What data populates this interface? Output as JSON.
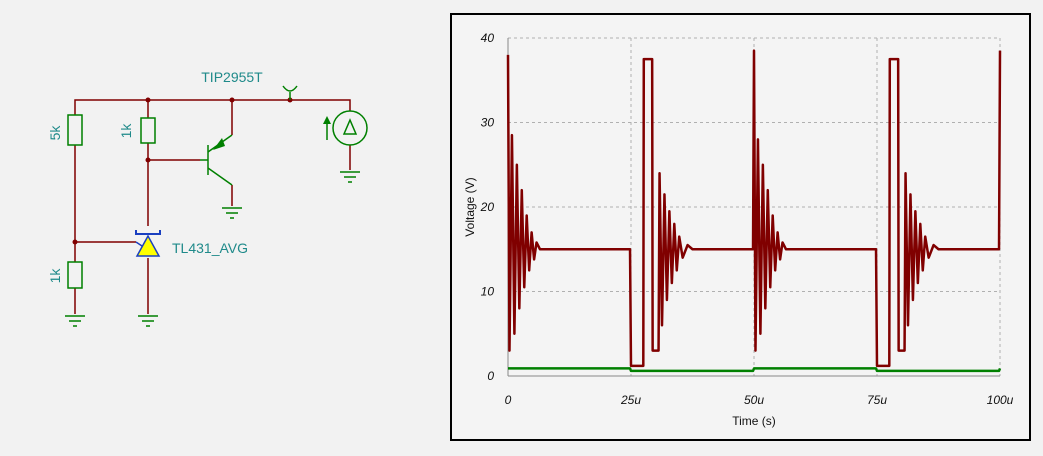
{
  "schematic": {
    "components": [
      {
        "label": "5k"
      },
      {
        "label": "1k"
      },
      {
        "label": "1k"
      },
      {
        "label": "TIP2955T"
      },
      {
        "label": "TL431_AVG"
      }
    ]
  },
  "chart_data": {
    "type": "line",
    "x_label": "Time (s)",
    "y_label": "Voltage (V)",
    "xlim": [
      0,
      0.0001
    ],
    "ylim": [
      0,
      40
    ],
    "xticks": [
      0,
      {
        "value": 2.5e-05,
        "label": "25u"
      },
      {
        "value": 5e-05,
        "label": "50u"
      },
      {
        "value": 7.5e-05,
        "label": "75u"
      },
      {
        "value": 0.0001,
        "label": "100u"
      }
    ],
    "yticks": [
      0,
      10,
      20,
      30,
      40
    ],
    "grid": true,
    "x": [
      0,
      3e-07,
      8e-07,
      1.3e-06,
      1.8e-06,
      2.3e-06,
      2.8e-06,
      3.3e-06,
      3.8e-06,
      4.3e-06,
      4.8e-06,
      5.3e-06,
      5.8e-06,
      6.5e-06,
      2.48e-05,
      2.5e-05,
      2.75e-05,
      2.76e-05,
      2.93e-05,
      2.94e-05,
      3.06e-05,
      3.08e-05,
      3.13e-05,
      3.18e-05,
      3.23e-05,
      3.28e-05,
      3.33e-05,
      3.38e-05,
      3.43e-05,
      3.48e-05,
      3.55e-05,
      3.65e-05,
      3.75e-05,
      4.98e-05,
      5e-05,
      5.03e-05,
      5.08e-05,
      5.13e-05,
      5.18e-05,
      5.23e-05,
      5.28e-05,
      5.33e-05,
      5.38e-05,
      5.43e-05,
      5.48e-05,
      5.53e-05,
      5.58e-05,
      5.65e-05,
      7.48e-05,
      7.5e-05,
      7.75e-05,
      7.76e-05,
      7.93e-05,
      7.94e-05,
      8.06e-05,
      8.08e-05,
      8.13e-05,
      8.18e-05,
      8.23e-05,
      8.28e-05,
      8.33e-05,
      8.38e-05,
      8.43e-05,
      8.48e-05,
      8.55e-05,
      8.65e-05,
      8.75e-05,
      9.98e-05,
      0.0001
    ],
    "series": [
      {
        "color": "#800000",
        "values": [
          38,
          3,
          28.5,
          5,
          25,
          8,
          22,
          10.5,
          19,
          12.5,
          17,
          13.8,
          15.8,
          15,
          15,
          1.2,
          1.2,
          37.5,
          37.5,
          3,
          3,
          24,
          6,
          21.5,
          9,
          19.5,
          11,
          18,
          12.5,
          16.5,
          14,
          15.5,
          15,
          15,
          38.5,
          3,
          28,
          5,
          25,
          8,
          22,
          10.5,
          19,
          12.5,
          17,
          13.8,
          15.8,
          15,
          15,
          1.2,
          1.2,
          37.5,
          37.5,
          3,
          3,
          24,
          6,
          21.5,
          9,
          19.5,
          11,
          18,
          12.5,
          16.5,
          14,
          15.5,
          15,
          15,
          38.5
        ]
      },
      {
        "color": "#008000",
        "values": [
          0.9,
          0.9,
          0.9,
          0.9,
          0.9,
          0.9,
          0.9,
          0.9,
          0.9,
          0.9,
          0.9,
          0.9,
          0.9,
          0.9,
          0.9,
          0.6,
          0.6,
          0.6,
          0.6,
          0.6,
          0.6,
          0.6,
          0.6,
          0.6,
          0.6,
          0.6,
          0.6,
          0.6,
          0.6,
          0.6,
          0.6,
          0.6,
          0.6,
          0.6,
          0.9,
          0.9,
          0.9,
          0.9,
          0.9,
          0.9,
          0.9,
          0.9,
          0.9,
          0.9,
          0.9,
          0.9,
          0.9,
          0.9,
          0.9,
          0.6,
          0.6,
          0.6,
          0.6,
          0.6,
          0.6,
          0.6,
          0.6,
          0.6,
          0.6,
          0.6,
          0.6,
          0.6,
          0.6,
          0.6,
          0.6,
          0.6,
          0.6,
          0.6,
          0.9
        ]
      }
    ]
  }
}
